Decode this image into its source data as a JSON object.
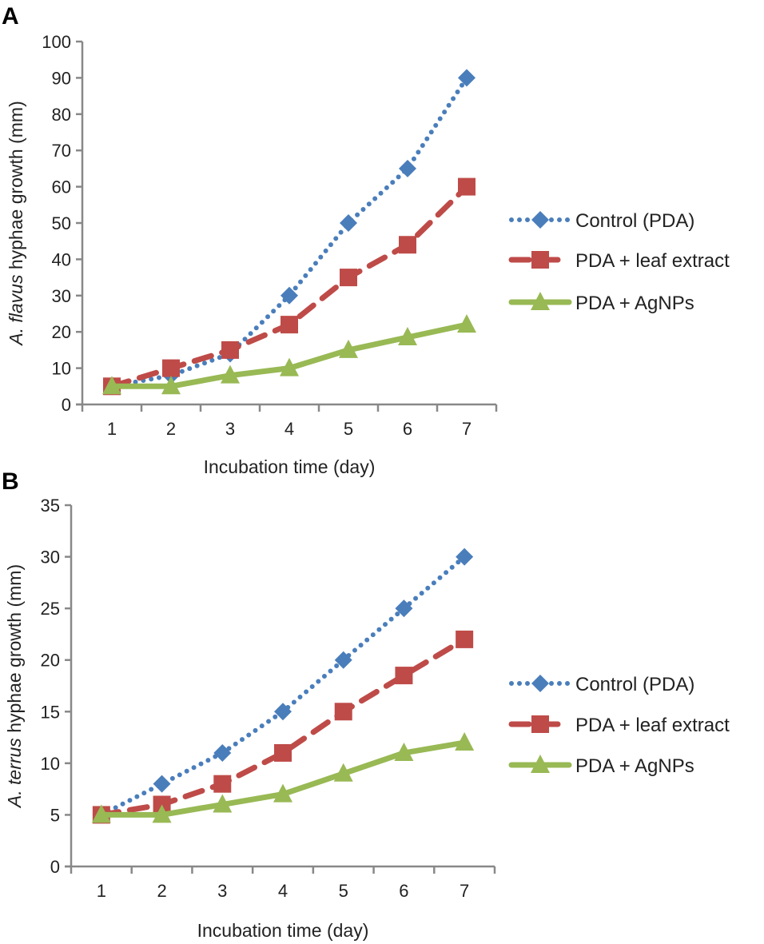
{
  "chart_data": [
    {
      "panel": "A",
      "type": "line",
      "categories": [
        "1",
        "2",
        "3",
        "4",
        "5",
        "6",
        "7"
      ],
      "xlabel": "Incubation time (day)",
      "ylabel_italic": "A. flavus",
      "ylabel_rest": " hyphae growth (mm)",
      "ylim": [
        0,
        100
      ],
      "ystep": 10,
      "grid": false,
      "legend": "right",
      "series": [
        {
          "name": "Control (PDA)",
          "color": "#4a7ebb",
          "style": "dotted",
          "marker": "diamond",
          "values": [
            5,
            8,
            14,
            30,
            50,
            65,
            90
          ]
        },
        {
          "name": "PDA + leaf extract",
          "color": "#be4b48",
          "style": "dashed",
          "marker": "square",
          "values": [
            5,
            10,
            15,
            22,
            35,
            44,
            60
          ]
        },
        {
          "name": "PDA + AgNPs",
          "color": "#98b954",
          "style": "solid",
          "marker": "triangle",
          "values": [
            5,
            5,
            8,
            10,
            15,
            18.5,
            22
          ]
        }
      ]
    },
    {
      "panel": "B",
      "type": "line",
      "categories": [
        "1",
        "2",
        "3",
        "4",
        "5",
        "6",
        "7"
      ],
      "xlabel": "Incubation time (day)",
      "ylabel_italic": "A. terrus",
      "ylabel_rest": " hyphae growth (mm)",
      "ylim": [
        0,
        35
      ],
      "ystep": 5,
      "grid": false,
      "legend": "right",
      "series": [
        {
          "name": "Control (PDA)",
          "color": "#4a7ebb",
          "style": "dotted",
          "marker": "diamond",
          "values": [
            5,
            8,
            11,
            15,
            20,
            25,
            30
          ]
        },
        {
          "name": "PDA + leaf extract",
          "color": "#be4b48",
          "style": "dashed",
          "marker": "square",
          "values": [
            5,
            6,
            8,
            11,
            15,
            18.5,
            22
          ]
        },
        {
          "name": "PDA + AgNPs",
          "color": "#98b954",
          "style": "solid",
          "marker": "triangle",
          "values": [
            5,
            5,
            6,
            7,
            9,
            11,
            12
          ]
        }
      ]
    }
  ]
}
